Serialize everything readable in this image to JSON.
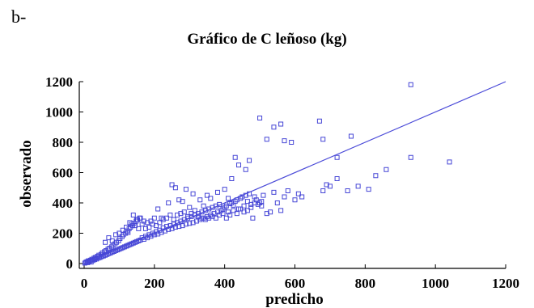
{
  "panel_label": "b-",
  "chart_data": {
    "type": "scatter",
    "title": "Gráfico de C leñoso (kg)",
    "xlabel": "predicho",
    "ylabel": "observado",
    "xlim": [
      0,
      1200
    ],
    "ylim": [
      0,
      1200
    ],
    "xticks": [
      0,
      200,
      400,
      600,
      800,
      1000,
      1200
    ],
    "yticks": [
      0,
      200,
      400,
      600,
      800,
      1000,
      1200
    ],
    "grid": false,
    "colors": {
      "points": "#4646d6",
      "fit_line": "#4a4ad8"
    },
    "fit_line": {
      "from": [
        0,
        0
      ],
      "to": [
        1200,
        1200
      ]
    },
    "points": [
      [
        2,
        3
      ],
      [
        5,
        8
      ],
      [
        8,
        12
      ],
      [
        10,
        6
      ],
      [
        12,
        18
      ],
      [
        15,
        14
      ],
      [
        18,
        22
      ],
      [
        20,
        10
      ],
      [
        22,
        28
      ],
      [
        25,
        20
      ],
      [
        28,
        35
      ],
      [
        30,
        26
      ],
      [
        32,
        40
      ],
      [
        35,
        30
      ],
      [
        38,
        48
      ],
      [
        40,
        36
      ],
      [
        42,
        55
      ],
      [
        45,
        40
      ],
      [
        48,
        60
      ],
      [
        50,
        46
      ],
      [
        52,
        70
      ],
      [
        55,
        50
      ],
      [
        58,
        78
      ],
      [
        60,
        55
      ],
      [
        62,
        85
      ],
      [
        65,
        60
      ],
      [
        68,
        95
      ],
      [
        70,
        66
      ],
      [
        72,
        100
      ],
      [
        75,
        70
      ],
      [
        78,
        110
      ],
      [
        80,
        76
      ],
      [
        82,
        120
      ],
      [
        85,
        80
      ],
      [
        88,
        130
      ],
      [
        90,
        86
      ],
      [
        92,
        140
      ],
      [
        95,
        90
      ],
      [
        98,
        150
      ],
      [
        100,
        95
      ],
      [
        102,
        165
      ],
      [
        105,
        100
      ],
      [
        108,
        178
      ],
      [
        110,
        105
      ],
      [
        112,
        190
      ],
      [
        115,
        110
      ],
      [
        118,
        200
      ],
      [
        120,
        115
      ],
      [
        122,
        215
      ],
      [
        125,
        120
      ],
      [
        128,
        230
      ],
      [
        130,
        125
      ],
      [
        132,
        240
      ],
      [
        135,
        130
      ],
      [
        138,
        250
      ],
      [
        140,
        135
      ],
      [
        142,
        265
      ],
      [
        145,
        140
      ],
      [
        148,
        280
      ],
      [
        150,
        145
      ],
      [
        152,
        290
      ],
      [
        155,
        150
      ],
      [
        158,
        300
      ],
      [
        160,
        155
      ],
      [
        165,
        170
      ],
      [
        170,
        160
      ],
      [
        175,
        180
      ],
      [
        180,
        170
      ],
      [
        185,
        190
      ],
      [
        190,
        180
      ],
      [
        195,
        200
      ],
      [
        200,
        190
      ],
      [
        205,
        210
      ],
      [
        210,
        195
      ],
      [
        215,
        220
      ],
      [
        220,
        205
      ],
      [
        225,
        235
      ],
      [
        230,
        215
      ],
      [
        235,
        245
      ],
      [
        240,
        225
      ],
      [
        245,
        250
      ],
      [
        250,
        230
      ],
      [
        255,
        260
      ],
      [
        260,
        240
      ],
      [
        265,
        270
      ],
      [
        270,
        245
      ],
      [
        275,
        280
      ],
      [
        280,
        250
      ],
      [
        285,
        290
      ],
      [
        290,
        260
      ],
      [
        295,
        300
      ],
      [
        300,
        265
      ],
      [
        305,
        310
      ],
      [
        310,
        270
      ],
      [
        315,
        320
      ],
      [
        320,
        280
      ],
      [
        325,
        330
      ],
      [
        330,
        290
      ],
      [
        335,
        340
      ],
      [
        340,
        300
      ],
      [
        345,
        350
      ],
      [
        350,
        310
      ],
      [
        355,
        360
      ],
      [
        360,
        320
      ],
      [
        365,
        370
      ],
      [
        370,
        330
      ],
      [
        375,
        380
      ],
      [
        380,
        340
      ],
      [
        385,
        390
      ],
      [
        390,
        350
      ],
      [
        395,
        360
      ],
      [
        400,
        370
      ],
      [
        405,
        380
      ],
      [
        410,
        340
      ],
      [
        415,
        395
      ],
      [
        420,
        400
      ],
      [
        425,
        385
      ],
      [
        430,
        410
      ],
      [
        435,
        420
      ],
      [
        440,
        360
      ],
      [
        445,
        430
      ],
      [
        450,
        440
      ],
      [
        455,
        380
      ],
      [
        460,
        450
      ],
      [
        465,
        410
      ],
      [
        470,
        460
      ],
      [
        475,
        390
      ],
      [
        480,
        300
      ],
      [
        485,
        440
      ],
      [
        490,
        420
      ],
      [
        500,
        400
      ],
      [
        505,
        380
      ],
      [
        510,
        450
      ],
      [
        520,
        330
      ],
      [
        530,
        340
      ],
      [
        540,
        470
      ],
      [
        550,
        400
      ],
      [
        560,
        350
      ],
      [
        570,
        440
      ],
      [
        580,
        480
      ],
      [
        600,
        420
      ],
      [
        610,
        460
      ],
      [
        620,
        440
      ],
      [
        680,
        480
      ],
      [
        690,
        520
      ],
      [
        700,
        510
      ],
      [
        720,
        560
      ],
      [
        750,
        480
      ],
      [
        780,
        510
      ],
      [
        810,
        490
      ],
      [
        830,
        580
      ],
      [
        860,
        620
      ],
      [
        930,
        700
      ],
      [
        1040,
        670
      ],
      [
        100,
        200
      ],
      [
        130,
        270
      ],
      [
        140,
        320
      ],
      [
        150,
        290
      ],
      [
        160,
        300
      ],
      [
        170,
        280
      ],
      [
        180,
        270
      ],
      [
        190,
        280
      ],
      [
        200,
        300
      ],
      [
        210,
        360
      ],
      [
        220,
        300
      ],
      [
        240,
        400
      ],
      [
        250,
        520
      ],
      [
        260,
        500
      ],
      [
        270,
        420
      ],
      [
        280,
        410
      ],
      [
        290,
        490
      ],
      [
        300,
        370
      ],
      [
        310,
        460
      ],
      [
        330,
        420
      ],
      [
        340,
        380
      ],
      [
        350,
        450
      ],
      [
        360,
        430
      ],
      [
        380,
        470
      ],
      [
        400,
        490
      ],
      [
        410,
        430
      ],
      [
        420,
        560
      ],
      [
        430,
        700
      ],
      [
        440,
        650
      ],
      [
        460,
        620
      ],
      [
        470,
        680
      ],
      [
        500,
        960
      ],
      [
        520,
        820
      ],
      [
        540,
        900
      ],
      [
        560,
        920
      ],
      [
        570,
        810
      ],
      [
        590,
        800
      ],
      [
        670,
        940
      ],
      [
        680,
        820
      ],
      [
        720,
        700
      ],
      [
        760,
        840
      ],
      [
        930,
        1180
      ],
      [
        60,
        140
      ],
      [
        70,
        170
      ],
      [
        80,
        150
      ],
      [
        90,
        190
      ],
      [
        110,
        220
      ],
      [
        120,
        240
      ],
      [
        125,
        205
      ],
      [
        135,
        260
      ],
      [
        145,
        250
      ],
      [
        155,
        230
      ],
      [
        165,
        260
      ],
      [
        175,
        230
      ],
      [
        185,
        240
      ],
      [
        195,
        260
      ],
      [
        205,
        250
      ],
      [
        215,
        270
      ],
      [
        225,
        290
      ],
      [
        235,
        300
      ],
      [
        245,
        320
      ],
      [
        255,
        290
      ],
      [
        265,
        320
      ],
      [
        275,
        330
      ],
      [
        285,
        340
      ],
      [
        295,
        310
      ],
      [
        305,
        330
      ],
      [
        315,
        350
      ],
      [
        325,
        310
      ],
      [
        335,
        300
      ],
      [
        345,
        290
      ],
      [
        355,
        300
      ],
      [
        365,
        310
      ],
      [
        375,
        300
      ],
      [
        385,
        320
      ],
      [
        395,
        330
      ],
      [
        405,
        300
      ],
      [
        415,
        320
      ],
      [
        425,
        350
      ],
      [
        435,
        330
      ],
      [
        445,
        360
      ],
      [
        455,
        340
      ],
      [
        465,
        350
      ],
      [
        475,
        370
      ],
      [
        485,
        400
      ],
      [
        495,
        390
      ],
      [
        505,
        410
      ]
    ]
  }
}
